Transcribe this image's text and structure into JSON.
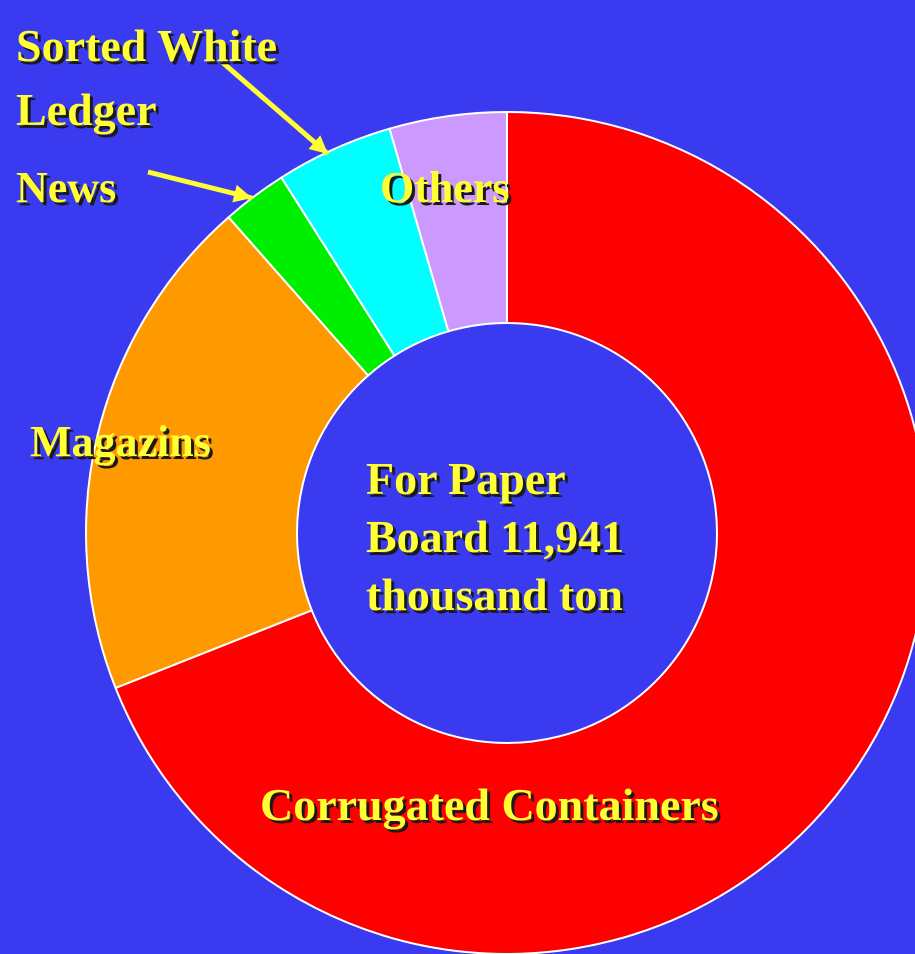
{
  "chart_data": {
    "type": "pie",
    "style": "donut",
    "center_label": "For Paper Board 11,941 thousand ton",
    "slices": [
      {
        "label": "Corrugated Containers",
        "value": 69.0,
        "color": "#ff0000"
      },
      {
        "label": "Magazins",
        "value": 19.5,
        "color": "#ff9900"
      },
      {
        "label": "News",
        "value": 2.5,
        "color": "#00ee00"
      },
      {
        "label": "Sorted White Ledger",
        "value": 4.5,
        "color": "#00ffff"
      },
      {
        "label": "Others",
        "value": 4.5,
        "color": "#cc99ff"
      }
    ],
    "start_angle": "12 o'clock",
    "direction": "clockwise",
    "legend": "none"
  },
  "labels": {
    "corrugated": "Corrugated Containers",
    "magazines": "Magazins",
    "news": "News",
    "sorted_white_ledger": "Sorted White Ledger",
    "others": "Others",
    "center": "For Paper Board 11,941 thousand ton"
  },
  "colors": {
    "background": "#3a3af0",
    "label_text": "#ffff33",
    "leader_line": "#ffff33",
    "slice_border": "#ffffff"
  }
}
